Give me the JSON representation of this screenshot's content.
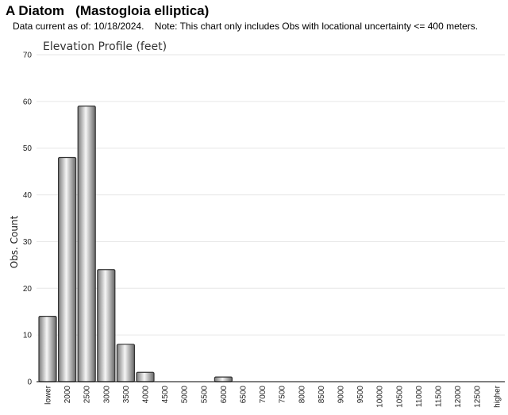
{
  "header": {
    "title": "A Diatom   (Mastogloia elliptica)",
    "note": "Data current as of: 10/18/2024.    Note: This chart only includes Obs with locational uncertainty <= 400 meters."
  },
  "chart_data": {
    "type": "bar",
    "title": "Elevation Profile (feet)",
    "xlabel": "",
    "ylabel": "Obs. Count",
    "ylim": [
      0,
      70
    ],
    "yticks": [
      0,
      10,
      20,
      30,
      40,
      50,
      60,
      70
    ],
    "grid": true,
    "categories": [
      "lower",
      "2000",
      "2500",
      "3000",
      "3500",
      "4000",
      "4500",
      "5000",
      "5500",
      "6000",
      "6500",
      "7000",
      "7500",
      "8000",
      "8500",
      "9000",
      "9500",
      "10000",
      "10500",
      "11000",
      "11500",
      "12000",
      "12500",
      "higher"
    ],
    "values": [
      14,
      48,
      59,
      24,
      8,
      2,
      0,
      0,
      0,
      1,
      0,
      0,
      0,
      0,
      0,
      0,
      0,
      0,
      0,
      0,
      0,
      0,
      0,
      0
    ],
    "colors": {
      "bar_light": "#f4f4f4",
      "bar_dark": "#6a6a6a",
      "bar_stroke": "#333333",
      "grid": "#e6e6e6",
      "axis": "#000000"
    }
  }
}
